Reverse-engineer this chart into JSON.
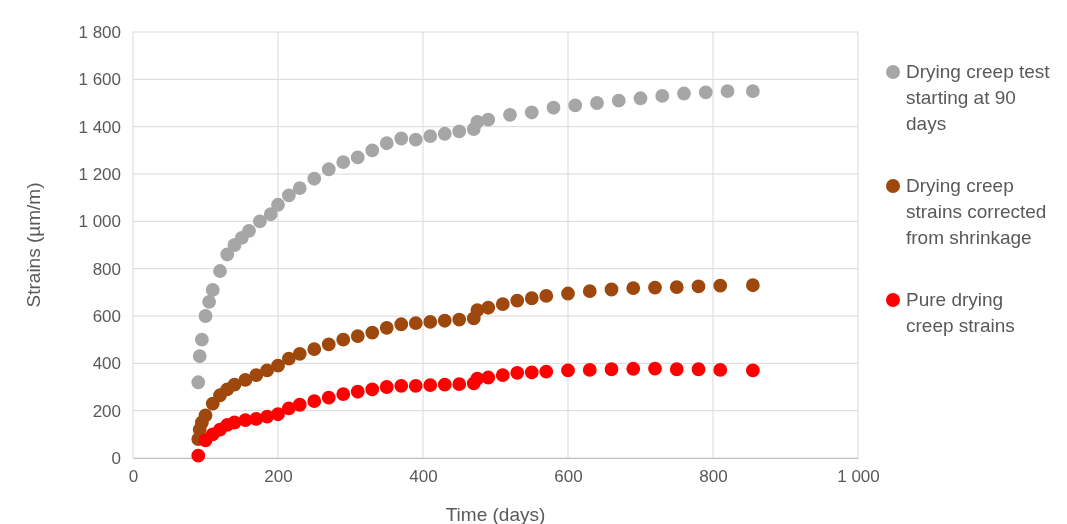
{
  "chart_data": {
    "type": "scatter",
    "xlabel": "Time (days)",
    "ylabel": "Strains (µm/m)",
    "xlim": [
      0,
      1000
    ],
    "xticks": [
      0,
      200,
      400,
      600,
      800,
      {
        "value": 1000,
        "label": "1 000"
      }
    ],
    "ylim": [
      0,
      1800
    ],
    "yticks": [
      0,
      200,
      400,
      600,
      800,
      {
        "value": 1000,
        "label": "1 000"
      },
      {
        "value": 1200,
        "label": "1 200"
      },
      {
        "value": 1400,
        "label": "1 400"
      },
      {
        "value": 1600,
        "label": "1 600"
      },
      {
        "value": 1800,
        "label": "1 800"
      }
    ],
    "grid": true,
    "legend": "right",
    "marker": "circle",
    "series": [
      {
        "name": "Drying creep test starting at 90 days",
        "color": "#a6a6a6",
        "x": [
          90,
          92,
          95,
          100,
          105,
          110,
          120,
          130,
          140,
          150,
          160,
          175,
          190,
          200,
          215,
          230,
          250,
          270,
          290,
          310,
          330,
          350,
          370,
          390,
          410,
          430,
          450,
          470,
          475,
          490,
          520,
          550,
          580,
          610,
          640,
          670,
          700,
          730,
          760,
          790,
          820,
          855
        ],
        "values": [
          320,
          430,
          500,
          600,
          660,
          710,
          790,
          860,
          900,
          930,
          960,
          1000,
          1030,
          1070,
          1110,
          1140,
          1180,
          1220,
          1250,
          1270,
          1300,
          1330,
          1350,
          1345,
          1360,
          1370,
          1380,
          1390,
          1420,
          1430,
          1450,
          1460,
          1480,
          1490,
          1500,
          1510,
          1520,
          1530,
          1540,
          1545,
          1550,
          1550
        ]
      },
      {
        "name": "Drying creep strains corrected from shrinkage",
        "color": "#9e480e",
        "x": [
          90,
          92,
          95,
          100,
          110,
          120,
          130,
          140,
          155,
          170,
          185,
          200,
          215,
          230,
          250,
          270,
          290,
          310,
          330,
          350,
          370,
          390,
          410,
          430,
          450,
          470,
          475,
          490,
          510,
          530,
          550,
          570,
          600,
          630,
          660,
          690,
          720,
          750,
          780,
          810,
          855
        ],
        "values": [
          80,
          120,
          150,
          180,
          230,
          265,
          290,
          310,
          330,
          350,
          370,
          390,
          420,
          440,
          460,
          480,
          500,
          515,
          530,
          550,
          565,
          570,
          575,
          580,
          585,
          590,
          625,
          635,
          650,
          665,
          675,
          685,
          695,
          705,
          712,
          718,
          720,
          722,
          725,
          728,
          730
        ]
      },
      {
        "name": "Pure drying creep strains",
        "color": "#ff0000",
        "x": [
          90,
          100,
          110,
          120,
          130,
          140,
          155,
          170,
          185,
          200,
          215,
          230,
          250,
          270,
          290,
          310,
          330,
          350,
          370,
          390,
          410,
          430,
          450,
          470,
          475,
          490,
          510,
          530,
          550,
          570,
          600,
          630,
          660,
          690,
          720,
          750,
          780,
          810,
          855
        ],
        "values": [
          10,
          75,
          100,
          120,
          140,
          150,
          160,
          165,
          175,
          185,
          210,
          225,
          240,
          255,
          270,
          280,
          290,
          300,
          305,
          305,
          308,
          310,
          312,
          315,
          335,
          340,
          350,
          360,
          362,
          365,
          370,
          372,
          375,
          377,
          378,
          375,
          375,
          372,
          370
        ]
      }
    ]
  }
}
